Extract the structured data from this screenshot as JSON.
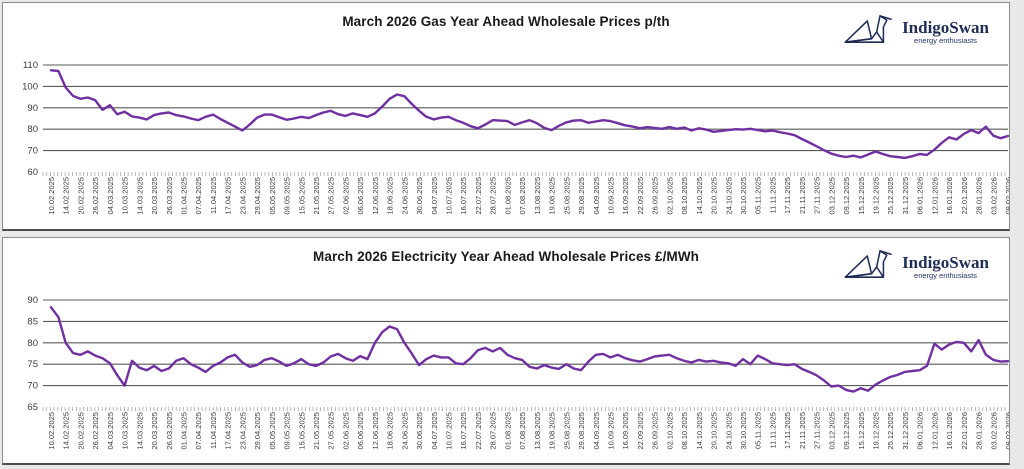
{
  "logo": {
    "name": "IndigoSwan",
    "tagline": "energy enthusiasts"
  },
  "colors": {
    "line": "#7030A0",
    "gridline": "#595959",
    "axis_text": "#3b3b3b",
    "brand_navy": "#1f2c55",
    "panel_background": "#ffffff",
    "page_background": "#e8e8e8"
  },
  "chart_data": [
    {
      "type": "line",
      "title": "March 2026 Gas Year Ahead Wholesale Prices p/th",
      "xlabel": "",
      "ylabel": "",
      "unit": "p/th",
      "ylim": [
        60,
        110
      ],
      "yticks": [
        60,
        70,
        80,
        90,
        100,
        110
      ],
      "grid": true,
      "legend": false,
      "x_labels": [
        "10.02.2025",
        "14.02.2025",
        "20.02.2025",
        "26.02.2025",
        "04.03.2025",
        "10.03.2025",
        "14.03.2025",
        "20.03.2025",
        "26.03.2025",
        "01.04.2025",
        "07.04.2025",
        "11.04.2025",
        "17.04.2025",
        "23.04.2025",
        "29.04.2025",
        "05.05.2025",
        "09.05.2025",
        "15.05.2025",
        "21.05.2025",
        "27.05.2025",
        "02.06.2025",
        "06.06.2025",
        "12.06.2025",
        "18.06.2025",
        "24.06.2025",
        "30.06.2025",
        "04.07.2025",
        "10.07.2025",
        "16.07.2025",
        "22.07.2025",
        "28.07.2025",
        "01.08.2025",
        "07.08.2025",
        "13.08.2025",
        "19.08.2025",
        "25.08.2025",
        "29.08.2025",
        "04.09.2025",
        "10.09.2025",
        "16.09.2025",
        "22.09.2025",
        "26.09.2025",
        "02.10.2025",
        "08.10.2025",
        "14.10.2025",
        "20.10.2025",
        "24.10.2025",
        "30.10.2025",
        "05.11.2025",
        "11.11.2025",
        "17.11.2025",
        "21.11.2025",
        "27.11.2025",
        "03.12.2025",
        "09.12.2025",
        "15.12.2025",
        "19.12.2025",
        "25.12.2025",
        "31.12.2025",
        "06.01.2026",
        "12.01.2026",
        "16.01.2026",
        "22.01.2026",
        "28.01.2026",
        "03.02.2026",
        "09.02.2026"
      ],
      "series": [
        {
          "name": "March 2026 Gas Year Ahead p/th",
          "color": "#7030A0",
          "values": [
            107.5,
            107.2,
            99.5,
            95.5,
            94.2,
            94.8,
            93.6,
            89.0,
            91.2,
            87.0,
            88.2,
            86.0,
            85.4,
            84.6,
            86.6,
            87.4,
            87.8,
            86.6,
            86.0,
            85.0,
            84.2,
            85.8,
            86.8,
            84.8,
            83.0,
            81.2,
            79.4,
            82.2,
            85.4,
            86.8,
            86.8,
            85.6,
            84.4,
            85.0,
            85.8,
            85.2,
            86.6,
            87.8,
            88.6,
            87.0,
            86.2,
            87.4,
            86.6,
            85.8,
            87.4,
            90.6,
            94.2,
            96.2,
            95.4,
            91.8,
            88.6,
            85.8,
            84.6,
            85.4,
            85.8,
            84.2,
            83.0,
            81.4,
            80.4,
            82.2,
            84.2,
            84.0,
            83.8,
            82.0,
            83.2,
            84.2,
            82.8,
            80.6,
            79.6,
            81.6,
            83.2,
            84.0,
            84.2,
            83.0,
            83.6,
            84.2,
            83.8,
            82.8,
            81.8,
            81.2,
            80.4,
            81.0,
            80.6,
            80.2,
            81.0,
            80.2,
            80.8,
            79.4,
            80.4,
            79.8,
            78.8,
            79.2,
            79.6,
            80.0,
            79.8,
            80.2,
            79.6,
            79.0,
            79.4,
            78.6,
            78.0,
            77.2,
            75.4,
            73.8,
            72.0,
            70.2,
            68.6,
            67.6,
            67.0,
            67.6,
            66.8,
            68.2,
            69.6,
            68.4,
            67.4,
            67.0,
            66.6,
            67.4,
            68.4,
            68.0,
            70.4,
            73.6,
            76.2,
            75.2,
            77.8,
            79.6,
            78.2,
            81.2,
            77.0,
            75.8,
            76.8
          ]
        }
      ]
    },
    {
      "type": "line",
      "title": "March 2026 Electricity Year Ahead Wholesale Prices £/MWh",
      "xlabel": "",
      "ylabel": "",
      "unit": "£/MWh",
      "ylim": [
        65,
        90
      ],
      "yticks": [
        65,
        70,
        75,
        80,
        85,
        90
      ],
      "grid": true,
      "legend": false,
      "x_labels": [
        "10.02.2025",
        "14.02.2025",
        "20.02.2025",
        "26.02.2025",
        "04.03.2025",
        "10.03.2025",
        "14.03.2025",
        "20.03.2025",
        "26.03.2025",
        "01.04.2025",
        "07.04.2025",
        "11.04.2025",
        "17.04.2025",
        "23.04.2025",
        "29.04.2025",
        "05.05.2025",
        "09.05.2025",
        "15.05.2025",
        "21.05.2025",
        "27.05.2025",
        "02.06.2025",
        "06.06.2025",
        "12.06.2025",
        "18.06.2025",
        "24.06.2025",
        "30.06.2025",
        "04.07.2025",
        "10.07.2025",
        "16.07.2025",
        "22.07.2025",
        "28.07.2025",
        "01.08.2025",
        "07.08.2025",
        "13.08.2025",
        "19.08.2025",
        "25.08.2025",
        "29.08.2025",
        "04.09.2025",
        "10.09.2025",
        "16.09.2025",
        "22.09.2025",
        "26.09.2025",
        "02.10.2025",
        "08.10.2025",
        "14.10.2025",
        "20.10.2025",
        "24.10.2025",
        "30.10.2025",
        "05.11.2025",
        "11.11.2025",
        "17.11.2025",
        "21.11.2025",
        "27.11.2025",
        "03.12.2025",
        "09.12.2025",
        "15.12.2025",
        "19.12.2025",
        "25.12.2025",
        "31.12.2025",
        "06.01.2026",
        "12.01.2026",
        "16.01.2026",
        "22.01.2026",
        "28.01.2026",
        "03.02.2026",
        "09.02.2026"
      ],
      "series": [
        {
          "name": "March 2026 Electricity Year Ahead £/MWh",
          "color": "#7030A0",
          "values": [
            88.3,
            86.0,
            80.0,
            77.6,
            77.2,
            78.0,
            77.0,
            76.4,
            75.2,
            72.4,
            70.0,
            75.8,
            74.2,
            73.6,
            74.6,
            73.4,
            74.0,
            75.8,
            76.4,
            75.0,
            74.2,
            73.2,
            74.6,
            75.4,
            76.6,
            77.2,
            75.4,
            74.4,
            74.8,
            76.0,
            76.4,
            75.6,
            74.6,
            75.2,
            76.2,
            75.0,
            74.6,
            75.4,
            76.8,
            77.4,
            76.4,
            75.8,
            76.9,
            76.2,
            80.0,
            82.5,
            83.8,
            83.2,
            80.0,
            77.5,
            74.8,
            76.2,
            77.0,
            76.6,
            76.6,
            75.2,
            75.0,
            76.4,
            78.3,
            78.8,
            78.0,
            78.8,
            77.2,
            76.4,
            76.0,
            74.4,
            74.0,
            74.8,
            74.2,
            73.9,
            75.0,
            74.0,
            73.6,
            75.6,
            77.2,
            77.4,
            76.6,
            77.2,
            76.4,
            75.9,
            75.6,
            76.2,
            76.8,
            77.0,
            77.2,
            76.4,
            75.8,
            75.4,
            76.0,
            75.6,
            75.8,
            75.4,
            75.2,
            74.6,
            76.2,
            75.0,
            77.0,
            76.2,
            75.2,
            75.0,
            74.8,
            75.0,
            73.9,
            73.2,
            72.4,
            71.2,
            69.8,
            70.0,
            69.0,
            68.6,
            69.4,
            68.8,
            70.2,
            71.2,
            72.0,
            72.5,
            73.2,
            73.4,
            73.6,
            74.6,
            79.8,
            78.4,
            79.6,
            80.2,
            80.0,
            78.0,
            80.6,
            77.2,
            76.0,
            75.6,
            75.7
          ]
        }
      ]
    }
  ]
}
